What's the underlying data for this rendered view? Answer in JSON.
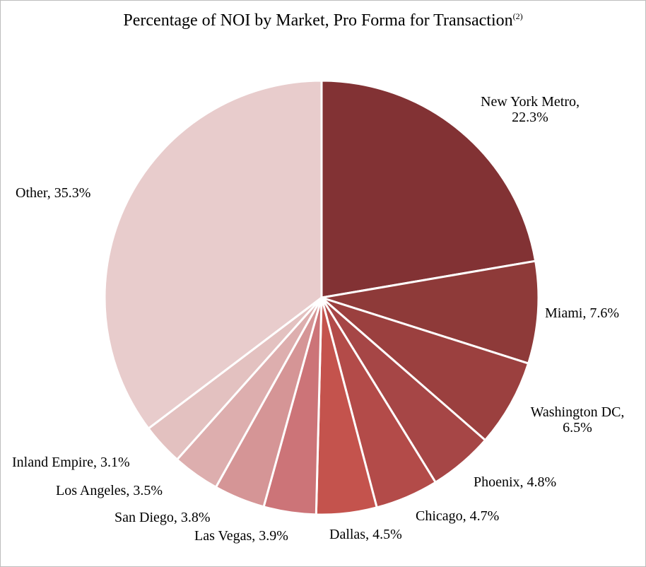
{
  "chart_data": {
    "type": "pie",
    "title": "Percentage of NOI by Market, Pro Forma for Transaction",
    "title_footnote": "(2)",
    "unit": "%",
    "slices": [
      {
        "label": "New York Metro",
        "value": 22.3,
        "display": "22.3%",
        "color": "#823234"
      },
      {
        "label": "Miami",
        "value": 7.6,
        "display": "7.6%",
        "color": "#8e3a39"
      },
      {
        "label": "Washington DC",
        "value": 6.5,
        "display": "6.5%",
        "color": "#9b403f"
      },
      {
        "label": "Phoenix",
        "value": 4.8,
        "display": "4.8%",
        "color": "#a64646"
      },
      {
        "label": "Chicago",
        "value": 4.7,
        "display": "4.7%",
        "color": "#b34b49"
      },
      {
        "label": "Dallas",
        "value": 4.5,
        "display": "4.5%",
        "color": "#c4534d"
      },
      {
        "label": "Las Vegas",
        "value": 3.9,
        "display": "3.9%",
        "color": "#cc7478"
      },
      {
        "label": "San Diego",
        "value": 3.8,
        "display": "3.8%",
        "color": "#d59596"
      },
      {
        "label": "Los Angeles",
        "value": 3.5,
        "display": "3.5%",
        "color": "#ddaeae"
      },
      {
        "label": "Inland Empire",
        "value": 3.1,
        "display": "3.1%",
        "color": "#e3c1c0"
      },
      {
        "label": "Other",
        "value": 35.3,
        "display": "35.3%",
        "color": "#e8cccc"
      }
    ]
  }
}
